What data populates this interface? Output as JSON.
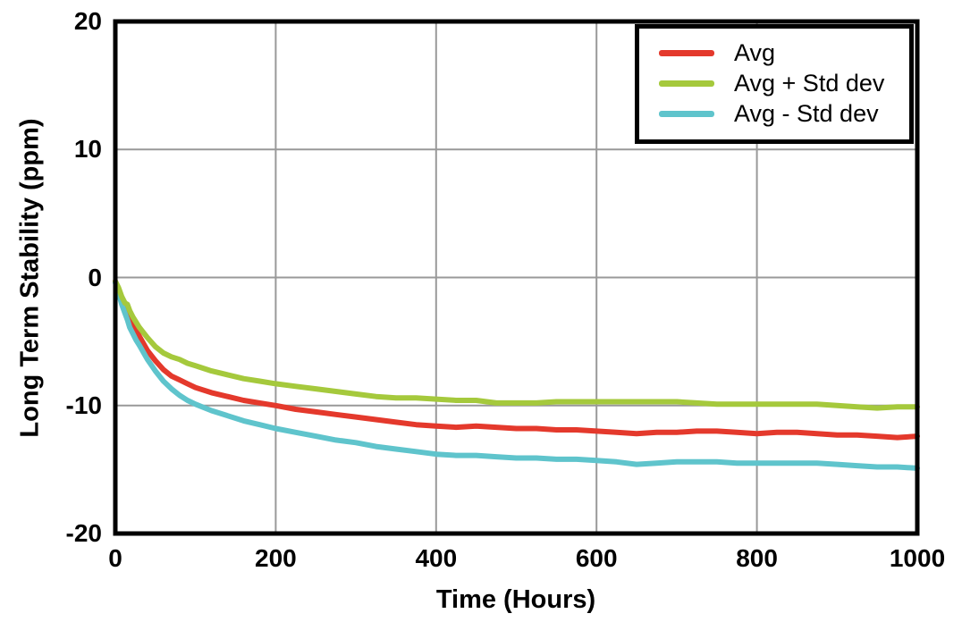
{
  "chart_data": {
    "type": "line",
    "title": "",
    "xlabel": "Time (Hours)",
    "ylabel": "Long Term Stability (ppm)",
    "xlim": [
      0,
      1000
    ],
    "ylim": [
      -20,
      20
    ],
    "xticks": [
      0,
      200,
      400,
      600,
      800,
      1000
    ],
    "yticks": [
      20,
      10,
      0,
      -10,
      -20
    ],
    "grid": true,
    "grid_color": "#999999",
    "border_color": "#000000",
    "legend_position": "top-right",
    "x": [
      0,
      4,
      8,
      12,
      15,
      18,
      22,
      26,
      30,
      40,
      50,
      60,
      70,
      80,
      90,
      100,
      120,
      140,
      160,
      180,
      200,
      225,
      250,
      275,
      300,
      325,
      350,
      375,
      400,
      425,
      450,
      475,
      500,
      525,
      550,
      575,
      600,
      625,
      650,
      675,
      700,
      725,
      750,
      775,
      800,
      825,
      850,
      875,
      900,
      925,
      950,
      975,
      1000
    ],
    "series": [
      {
        "name": "Avg",
        "color": "#e4392c",
        "z": 0,
        "values": [
          -0.3,
          -0.9,
          -1.6,
          -2.2,
          -2.7,
          -3.1,
          -3.6,
          -4.1,
          -4.6,
          -5.7,
          -6.5,
          -7.2,
          -7.7,
          -8.0,
          -8.3,
          -8.6,
          -9.0,
          -9.3,
          -9.6,
          -9.8,
          -10.0,
          -10.3,
          -10.5,
          -10.7,
          -10.9,
          -11.1,
          -11.3,
          -11.5,
          -11.6,
          -11.7,
          -11.6,
          -11.7,
          -11.8,
          -11.8,
          -11.9,
          -11.9,
          -12.0,
          -12.1,
          -12.2,
          -12.1,
          -12.1,
          -12.0,
          -12.0,
          -12.1,
          -12.2,
          -12.1,
          -12.1,
          -12.2,
          -12.3,
          -12.3,
          -12.4,
          -12.5,
          -12.4
        ]
      },
      {
        "name": "Avg + Std dev",
        "color": "#a5c93c",
        "z": 2,
        "values": [
          -0.3,
          -0.8,
          -1.5,
          -2.0,
          -2.1,
          -2.6,
          -3.1,
          -3.5,
          -3.9,
          -4.7,
          -5.4,
          -5.9,
          -6.2,
          -6.4,
          -6.7,
          -6.9,
          -7.3,
          -7.6,
          -7.9,
          -8.1,
          -8.3,
          -8.5,
          -8.7,
          -8.9,
          -9.1,
          -9.3,
          -9.4,
          -9.4,
          -9.5,
          -9.6,
          -9.6,
          -9.8,
          -9.8,
          -9.8,
          -9.7,
          -9.7,
          -9.7,
          -9.7,
          -9.7,
          -9.7,
          -9.7,
          -9.8,
          -9.9,
          -9.9,
          -9.9,
          -9.9,
          -9.9,
          -9.9,
          -10.0,
          -10.1,
          -10.2,
          -10.1,
          -10.1
        ]
      },
      {
        "name": "Avg - Std dev",
        "color": "#5fc4cc",
        "z": 1,
        "values": [
          -0.4,
          -1.2,
          -2.1,
          -2.8,
          -3.3,
          -3.9,
          -4.4,
          -4.9,
          -5.3,
          -6.4,
          -7.3,
          -8.1,
          -8.7,
          -9.2,
          -9.6,
          -9.9,
          -10.4,
          -10.8,
          -11.2,
          -11.5,
          -11.8,
          -12.1,
          -12.4,
          -12.7,
          -12.9,
          -13.2,
          -13.4,
          -13.6,
          -13.8,
          -13.9,
          -13.9,
          -14.0,
          -14.1,
          -14.1,
          -14.2,
          -14.2,
          -14.3,
          -14.4,
          -14.6,
          -14.5,
          -14.4,
          -14.4,
          -14.4,
          -14.5,
          -14.5,
          -14.5,
          -14.5,
          -14.5,
          -14.6,
          -14.7,
          -14.8,
          -14.8,
          -14.9
        ]
      }
    ]
  }
}
